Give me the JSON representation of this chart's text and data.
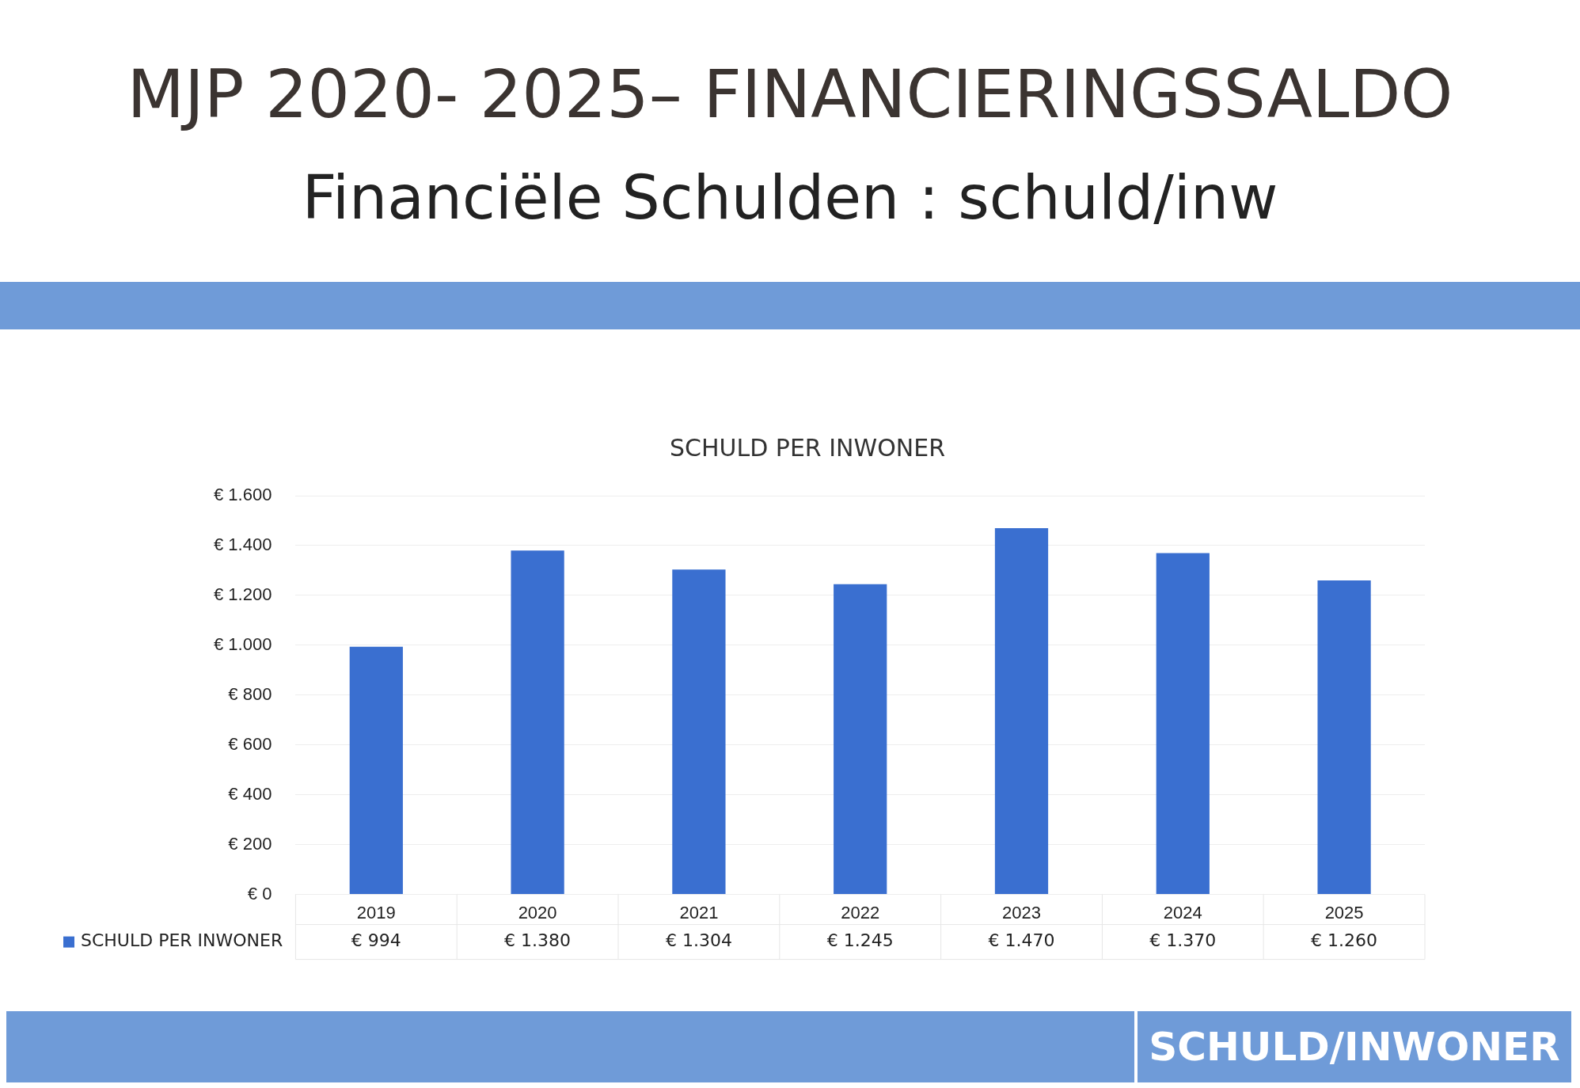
{
  "chart_data": {
    "type": "bar",
    "title": "SCHULD PER INWONER",
    "annotations": [
      "MJP 2020- 2025– FINANCIERINGSSALDO",
      "Financiële Schulden : schuld/inw",
      "SCHULD/INWONER"
    ],
    "categories": [
      "2019",
      "2020",
      "2021",
      "2022",
      "2023",
      "2024",
      "2025"
    ],
    "series": [
      {
        "name": "SCHULD PER INWONER",
        "color": "#3a6fd0",
        "values": [
          994,
          1380,
          1304,
          1245,
          1470,
          1370,
          1260
        ],
        "value_labels": [
          "€ 994",
          "€ 1.380",
          "€ 1.304",
          "€ 1.245",
          "€ 1.470",
          "€ 1.370",
          "€ 1.260"
        ]
      }
    ],
    "ylim": [
      0,
      1600
    ],
    "yticks": [
      {
        "value": 0,
        "label": "€ 0"
      },
      {
        "value": 200,
        "label": "€ 200"
      },
      {
        "value": 400,
        "label": "€ 400"
      },
      {
        "value": 600,
        "label": "€ 600"
      },
      {
        "value": 800,
        "label": "€ 800"
      },
      {
        "value": 1000,
        "label": "€ 1.000"
      },
      {
        "value": 1200,
        "label": "€ 1.200"
      },
      {
        "value": 1400,
        "label": "€ 1.400"
      },
      {
        "value": 1600,
        "label": "€ 1.600"
      }
    ],
    "grid": "y",
    "legend": "bottom left"
  }
}
